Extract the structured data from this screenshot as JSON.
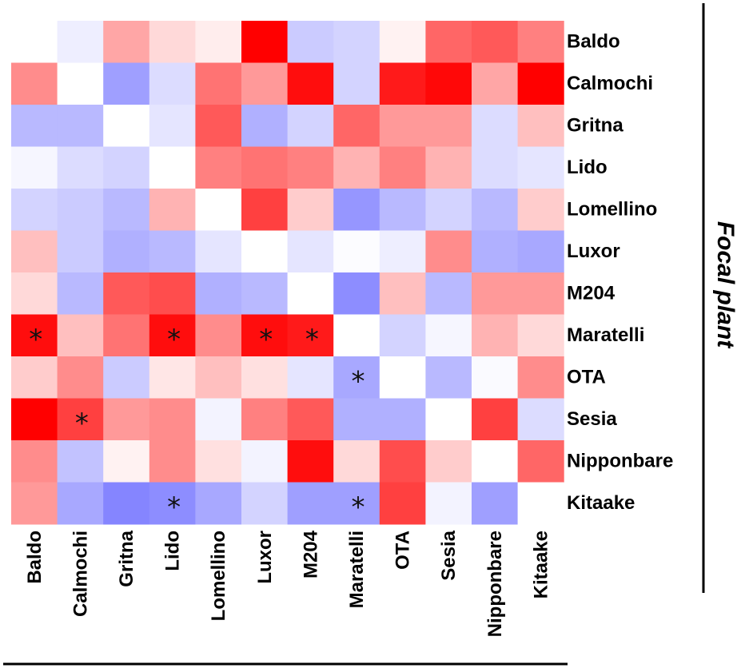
{
  "chart_data": {
    "type": "heatmap",
    "rows": [
      "Baldo",
      "Calmochi",
      "Gritna",
      "Lido",
      "Lomellino",
      "Luxor",
      "M204",
      "Maratelli",
      "OTA",
      "Sesia",
      "Nipponbare",
      "Kitaake"
    ],
    "columns": [
      "Baldo",
      "Calmochi",
      "Gritna",
      "Lido",
      "Lomellino",
      "Luxor",
      "M204",
      "Maratelli",
      "OTA",
      "Sesia",
      "Nipponbare",
      "Kitaake"
    ],
    "values": [
      [
        0,
        -0.1,
        0.35,
        0.15,
        0.07,
        1.0,
        -0.3,
        -0.25,
        0.05,
        0.6,
        0.65,
        0.5
      ],
      [
        0.45,
        0,
        -0.55,
        -0.2,
        0.55,
        0.4,
        0.95,
        -0.25,
        0.9,
        0.97,
        0.35,
        1.0
      ],
      [
        -0.4,
        -0.4,
        0,
        -0.15,
        0.65,
        -0.45,
        -0.25,
        0.6,
        0.4,
        0.4,
        -0.2,
        0.25
      ],
      [
        -0.05,
        -0.2,
        -0.25,
        0,
        0.5,
        0.55,
        0.5,
        0.3,
        0.5,
        0.3,
        -0.2,
        -0.15
      ],
      [
        -0.25,
        -0.3,
        -0.4,
        0.3,
        0,
        0.75,
        0.2,
        -0.6,
        -0.4,
        -0.25,
        -0.4,
        0.2
      ],
      [
        0.25,
        -0.3,
        -0.45,
        -0.4,
        -0.15,
        0,
        -0.15,
        -0.02,
        -0.1,
        0.45,
        -0.45,
        -0.5
      ],
      [
        0.15,
        -0.4,
        0.65,
        0.7,
        -0.45,
        -0.4,
        0,
        -0.65,
        0.25,
        -0.4,
        0.4,
        0.4
      ],
      [
        0.95,
        0.25,
        0.55,
        0.95,
        0.45,
        0.95,
        0.9,
        0,
        -0.25,
        -0.05,
        0.3,
        0.15
      ],
      [
        0.2,
        0.45,
        -0.3,
        0.1,
        0.25,
        0.12,
        -0.15,
        -0.5,
        0,
        -0.4,
        -0.03,
        0.45
      ],
      [
        1.0,
        0.75,
        0.4,
        0.45,
        -0.07,
        0.5,
        0.65,
        -0.45,
        -0.45,
        0,
        0.75,
        -0.2
      ],
      [
        0.45,
        -0.35,
        0.05,
        0.45,
        0.12,
        -0.07,
        0.95,
        0.15,
        0.7,
        0.2,
        0,
        0.6
      ],
      [
        0.4,
        -0.5,
        -0.7,
        -0.65,
        -0.5,
        -0.25,
        -0.55,
        -0.55,
        0.75,
        -0.07,
        -0.55,
        0
      ]
    ],
    "significance_marker": "*",
    "significant_cells": [
      [
        7,
        0
      ],
      [
        7,
        3
      ],
      [
        7,
        5
      ],
      [
        7,
        6
      ],
      [
        8,
        7
      ],
      [
        9,
        1
      ],
      [
        11,
        3
      ],
      [
        11,
        7
      ]
    ],
    "color_scale": {
      "negative": "#5050ff",
      "zero": "#ffffff",
      "positive": "#ff0000"
    },
    "ylabel": "Focal plant",
    "xlabel": ""
  }
}
